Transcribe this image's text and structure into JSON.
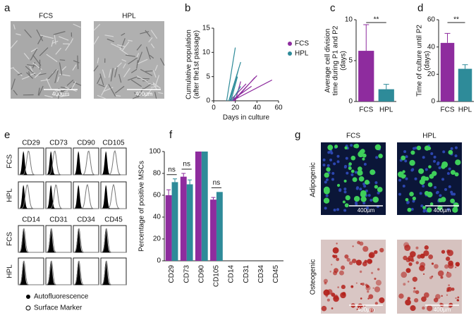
{
  "panel_labels": [
    "a",
    "b",
    "c",
    "d",
    "e",
    "f",
    "g"
  ],
  "panel_a": {
    "labels": [
      "FCS",
      "HPL"
    ],
    "scale_bars": [
      "400µm",
      "400µm"
    ]
  },
  "panel_e": {
    "columns_top": [
      "CD29",
      "CD73",
      "CD90",
      "CD105"
    ],
    "columns_bottom": [
      "CD14",
      "CD31",
      "CD34",
      "CD45"
    ],
    "rows_top": [
      "FCS",
      "HPL"
    ],
    "rows_bottom": [
      "FCS",
      "HPL"
    ],
    "legend": [
      "Autofluorescence",
      "Surface Marker"
    ]
  },
  "panel_g": {
    "columns": [
      "FCS",
      "HPL"
    ],
    "rows": [
      "Adipogenic",
      "Osteogenic"
    ],
    "scale_bars": [
      "400µm",
      "400µm",
      "400µm",
      "400µm"
    ]
  },
  "chart_data": [
    {
      "type": "line",
      "y_label": [
        "Cumulative population",
        "(after the1st passage)"
      ],
      "x_label": "Days in culture",
      "xlim": [
        0,
        60
      ],
      "xticks": [
        0,
        20,
        40,
        60
      ],
      "ylim": [
        0,
        15
      ],
      "yticks": [
        0,
        5,
        10,
        15
      ],
      "series": [
        {
          "name": "FCS",
          "color": "#8e2c9e",
          "x": [
            17,
            54,
            null,
            18,
            40,
            null,
            19,
            38,
            null,
            15,
            30,
            null,
            20,
            25,
            null,
            16,
            35
          ],
          "values": [
            0,
            4.3,
            null,
            0,
            5.2,
            null,
            0,
            4.8,
            null,
            0,
            3.5,
            null,
            0,
            4,
            null,
            0,
            3
          ]
        },
        {
          "name": "HPL",
          "color": "#2e8b99",
          "x": [
            12,
            20,
            null,
            14,
            25,
            null,
            15,
            23,
            null,
            16,
            22,
            null,
            17,
            25
          ],
          "values": [
            0,
            11,
            null,
            0,
            8,
            null,
            0,
            6.5,
            null,
            0,
            5,
            null,
            0,
            3
          ]
        }
      ]
    },
    {
      "type": "bar",
      "y_label": [
        "Average cell division",
        "time during P1 and P2",
        "(days)"
      ],
      "categories": [
        "FCS",
        "HPL"
      ],
      "values": [
        6.2,
        1.5
      ],
      "errors": [
        3.2,
        0.6
      ],
      "colors": [
        "#8e2c9e",
        "#2e8b99"
      ],
      "ylim": [
        0,
        10
      ],
      "yticks": [
        0,
        5,
        10
      ],
      "annotation": "**"
    },
    {
      "type": "bar",
      "y_label": [
        "Time of culture until P2",
        "(days)"
      ],
      "categories": [
        "FCS",
        "HPL"
      ],
      "values": [
        43,
        24
      ],
      "errors": [
        7,
        3
      ],
      "colors": [
        "#8e2c9e",
        "#2e8b99"
      ],
      "ylim": [
        0,
        60
      ],
      "yticks": [
        0,
        20,
        40,
        60
      ],
      "annotation": "**"
    },
    {
      "type": "grouped_bar",
      "y_label": [
        "Percentage of positive MSCs"
      ],
      "categories": [
        "CD29",
        "CD73",
        "CD90",
        "CD105",
        "CD14",
        "CD31",
        "CD34",
        "CD45"
      ],
      "series": [
        {
          "name": "FCS",
          "color": "#8e2c9e",
          "values": [
            60,
            77,
            100,
            56,
            null,
            null,
            null,
            null
          ],
          "errors": [
            5,
            3,
            0,
            2,
            null,
            null,
            null,
            null
          ]
        },
        {
          "name": "HPL",
          "color": "#2e8b99",
          "values": [
            72,
            70,
            100,
            63,
            null,
            null,
            null,
            null
          ],
          "errors": [
            3,
            4,
            0,
            0,
            null,
            null,
            null,
            null
          ]
        }
      ],
      "ylim": [
        0,
        100
      ],
      "yticks": [
        0,
        20,
        40,
        60,
        80,
        100
      ],
      "annotations": [
        {
          "text": "ns",
          "category": "CD29"
        },
        {
          "text": "ns",
          "category": "CD73"
        },
        {
          "text": "ns",
          "category": "CD105"
        }
      ]
    }
  ]
}
